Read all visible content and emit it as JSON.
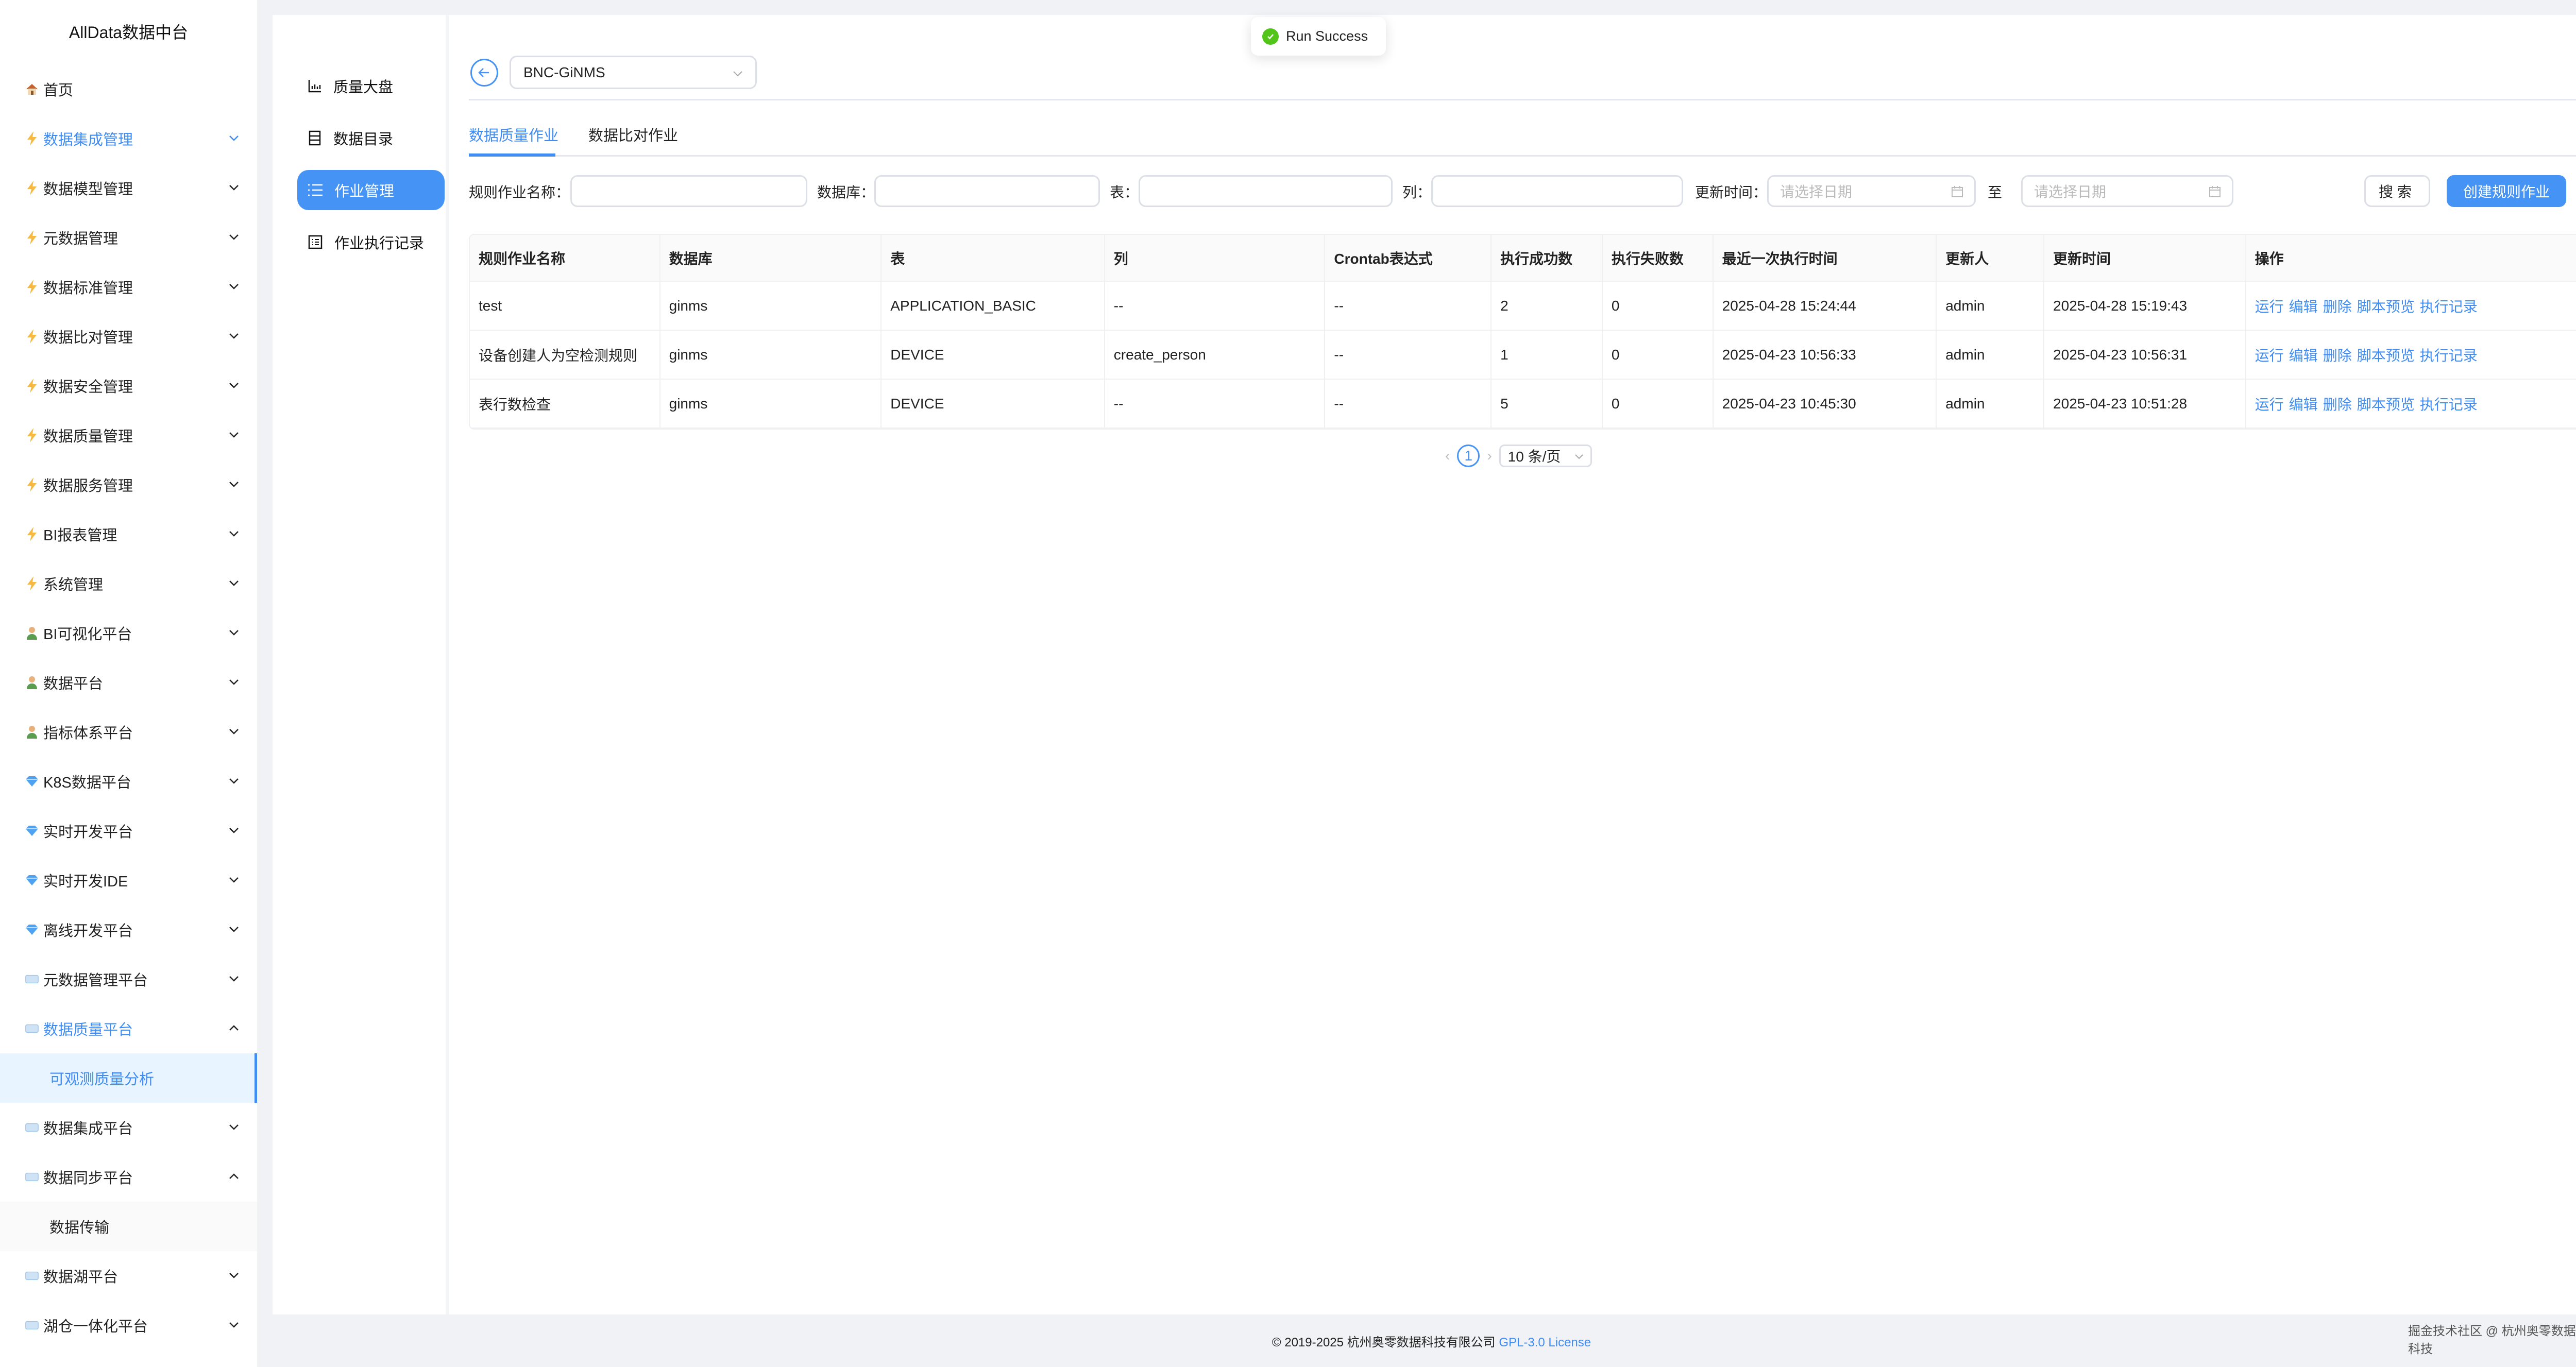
{
  "sidebar": {
    "brand": "AllData数据中台",
    "items": [
      {
        "label": "首页",
        "icon": "home",
        "chevron": "none"
      },
      {
        "label": "数据集成管理",
        "icon": "bolt",
        "chevron": "down",
        "active": true
      },
      {
        "label": "数据模型管理",
        "icon": "bolt",
        "chevron": "down"
      },
      {
        "label": "元数据管理",
        "icon": "bolt",
        "chevron": "down"
      },
      {
        "label": "数据标准管理",
        "icon": "bolt",
        "chevron": "down"
      },
      {
        "label": "数据比对管理",
        "icon": "bolt",
        "chevron": "down"
      },
      {
        "label": "数据安全管理",
        "icon": "bolt",
        "chevron": "down"
      },
      {
        "label": "数据质量管理",
        "icon": "bolt",
        "chevron": "down"
      },
      {
        "label": "数据服务管理",
        "icon": "bolt",
        "chevron": "down"
      },
      {
        "label": "BI报表管理",
        "icon": "bolt",
        "chevron": "down"
      },
      {
        "label": "系统管理",
        "icon": "bolt",
        "chevron": "down"
      },
      {
        "label": "BI可视化平台",
        "icon": "person",
        "chevron": "down"
      },
      {
        "label": "数据平台",
        "icon": "person",
        "chevron": "down"
      },
      {
        "label": "指标体系平台",
        "icon": "person",
        "chevron": "down"
      },
      {
        "label": "K8S数据平台",
        "icon": "diamond",
        "chevron": "down"
      },
      {
        "label": "实时开发平台",
        "icon": "diamond",
        "chevron": "down"
      },
      {
        "label": "实时开发IDE",
        "icon": "diamond",
        "chevron": "down"
      },
      {
        "label": "离线开发平台",
        "icon": "diamond",
        "chevron": "down"
      },
      {
        "label": "元数据管理平台",
        "icon": "cube",
        "chevron": "down"
      },
      {
        "label": "数据质量平台",
        "icon": "cube",
        "chevron": "up",
        "active": true
      },
      {
        "label": "可观测质量分析",
        "sub": true,
        "selected": true
      },
      {
        "label": "数据集成平台",
        "icon": "cube",
        "chevron": "down"
      },
      {
        "label": "数据同步平台",
        "icon": "cube",
        "chevron": "up"
      },
      {
        "label": "数据传输",
        "sub": true
      },
      {
        "label": "数据湖平台",
        "icon": "cube",
        "chevron": "down"
      },
      {
        "label": "湖仓一体化平台",
        "icon": "cube",
        "chevron": "down"
      }
    ]
  },
  "inner_menu": [
    {
      "label": "质量大盘",
      "icon": "bar-chart"
    },
    {
      "label": "数据目录",
      "icon": "catalog"
    },
    {
      "label": "作业管理",
      "icon": "list",
      "active": true
    },
    {
      "label": "作业执行记录",
      "icon": "record"
    }
  ],
  "datasource": {
    "value": "BNC-GiNMS"
  },
  "tabs": [
    {
      "label": "数据质量作业",
      "active": true
    },
    {
      "label": "数据比对作业"
    }
  ],
  "filters": {
    "job_name_label": "规则作业名称：",
    "database_label": "数据库：",
    "table_label": "表：",
    "column_label": "列：",
    "update_time_label": "更新时间：",
    "date_placeholder": "请选择日期",
    "to_label": "至",
    "search_label": "搜索",
    "create_label": "创建规则作业"
  },
  "table": {
    "columns": [
      "规则作业名称",
      "数据库",
      "表",
      "列",
      "Crontab表达式",
      "执行成功数",
      "执行失败数",
      "最近一次执行时间",
      "更新人",
      "更新时间",
      "操作"
    ],
    "rows": [
      [
        "test",
        "ginms",
        "APPLICATION_BASIC",
        "--",
        "--",
        "2",
        "0",
        "2025-04-28 15:24:44",
        "admin",
        "2025-04-28 15:19:43"
      ],
      [
        "设备创建人为空检测规则",
        "ginms",
        "DEVICE",
        "create_person",
        "--",
        "1",
        "0",
        "2025-04-23 10:56:33",
        "admin",
        "2025-04-23 10:56:31"
      ],
      [
        "表行数检查",
        "ginms",
        "DEVICE",
        "--",
        "--",
        "5",
        "0",
        "2025-04-23 10:45:30",
        "admin",
        "2025-04-23 10:51:28"
      ]
    ],
    "actions": [
      "运行",
      "编辑",
      "删除",
      "脚本预览",
      "执行记录"
    ]
  },
  "pagination": {
    "current": "1",
    "page_size": "10 条/页"
  },
  "toast": {
    "message": "Run Success",
    "type": "success"
  },
  "footer": {
    "copyright": "© 2019-2025 杭州奥零数据科技有限公司",
    "license": "GPL-3.0 License",
    "watermark": "掘金技术社区 @ 杭州奥零数据科技"
  },
  "colors": {
    "accent": "#4593f5",
    "success": "#52c41a",
    "bolt": "#f5b942"
  }
}
